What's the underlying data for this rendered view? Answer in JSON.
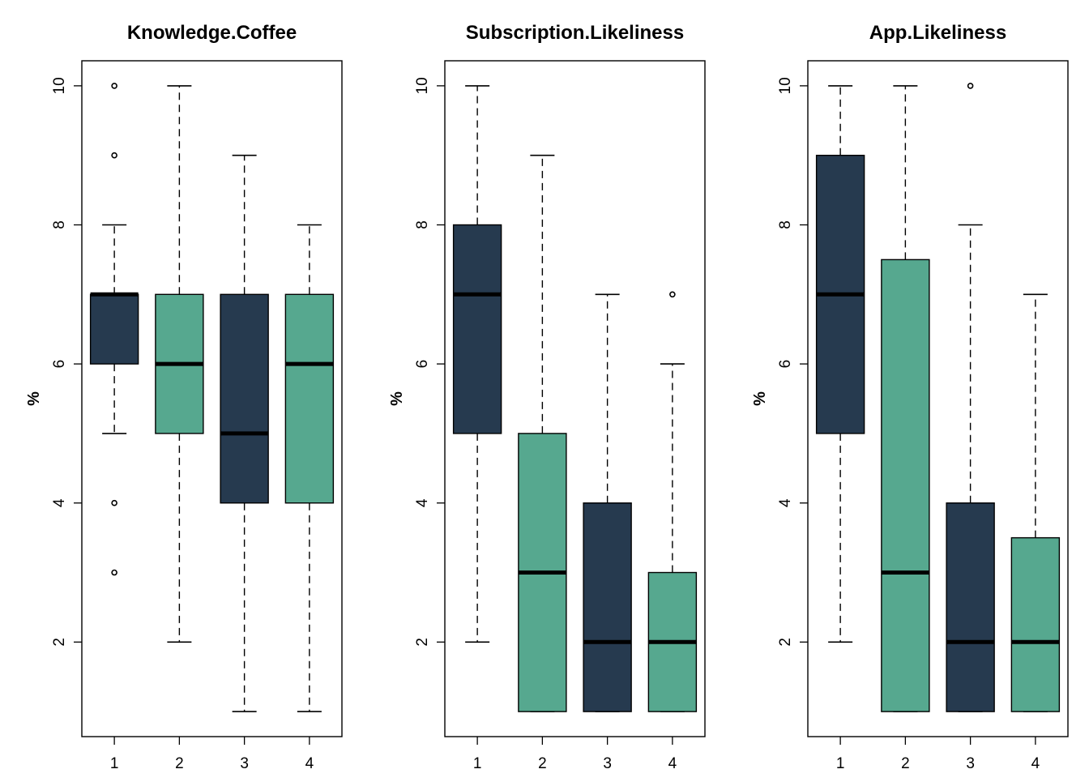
{
  "colors": {
    "dark": "#263a4f",
    "teal": "#56a88f",
    "line": "#000000",
    "background": "#ffffff"
  },
  "chart_data": [
    {
      "type": "boxplot",
      "title": "Knowledge.Coffee",
      "ylabel": "%",
      "categories": [
        "1",
        "2",
        "3",
        "4"
      ],
      "y_ticks": [
        2,
        4,
        6,
        8,
        10
      ],
      "ylim": [
        0.64,
        10.36
      ],
      "boxes": [
        {
          "category": "1",
          "whisker_low": 5,
          "q1": 6,
          "median": 7,
          "q3": 7,
          "whisker_high": 8,
          "outliers": [
            10,
            9,
            4,
            3
          ],
          "color": "dark"
        },
        {
          "category": "2",
          "whisker_low": 2,
          "q1": 5,
          "median": 6,
          "q3": 7,
          "whisker_high": 10,
          "outliers": [],
          "color": "teal"
        },
        {
          "category": "3",
          "whisker_low": 1,
          "q1": 4,
          "median": 5,
          "q3": 7,
          "whisker_high": 9,
          "outliers": [],
          "color": "dark"
        },
        {
          "category": "4",
          "whisker_low": 1,
          "q1": 4,
          "median": 6,
          "q3": 7,
          "whisker_high": 8,
          "outliers": [],
          "color": "teal"
        }
      ]
    },
    {
      "type": "boxplot",
      "title": "Subscription.Likeliness",
      "ylabel": "%",
      "categories": [
        "1",
        "2",
        "3",
        "4"
      ],
      "y_ticks": [
        2,
        4,
        6,
        8,
        10
      ],
      "ylim": [
        0.64,
        10.36
      ],
      "boxes": [
        {
          "category": "1",
          "whisker_low": 2,
          "q1": 5,
          "median": 7,
          "q3": 8,
          "whisker_high": 10,
          "outliers": [],
          "color": "dark"
        },
        {
          "category": "2",
          "whisker_low": 1,
          "q1": 1,
          "median": 3,
          "q3": 5,
          "whisker_high": 9,
          "outliers": [],
          "color": "teal"
        },
        {
          "category": "3",
          "whisker_low": 1,
          "q1": 1,
          "median": 2,
          "q3": 4,
          "whisker_high": 7,
          "outliers": [],
          "color": "dark"
        },
        {
          "category": "4",
          "whisker_low": 1,
          "q1": 1,
          "median": 2,
          "q3": 3,
          "whisker_high": 6,
          "outliers": [
            7
          ],
          "color": "teal"
        }
      ]
    },
    {
      "type": "boxplot",
      "title": "App.Likeliness",
      "ylabel": "%",
      "categories": [
        "1",
        "2",
        "3",
        "4"
      ],
      "y_ticks": [
        2,
        4,
        6,
        8,
        10
      ],
      "ylim": [
        0.64,
        10.36
      ],
      "boxes": [
        {
          "category": "1",
          "whisker_low": 2,
          "q1": 5,
          "median": 7,
          "q3": 9,
          "whisker_high": 10,
          "outliers": [],
          "color": "dark"
        },
        {
          "category": "2",
          "whisker_low": 1,
          "q1": 1,
          "median": 3,
          "q3": 7.5,
          "whisker_high": 10,
          "outliers": [],
          "color": "teal"
        },
        {
          "category": "3",
          "whisker_low": 1,
          "q1": 1,
          "median": 2,
          "q3": 4,
          "whisker_high": 8,
          "outliers": [
            10
          ],
          "color": "dark"
        },
        {
          "category": "4",
          "whisker_low": 1,
          "q1": 1,
          "median": 2,
          "q3": 3.5,
          "whisker_high": 7,
          "outliers": [],
          "color": "teal"
        }
      ]
    }
  ]
}
